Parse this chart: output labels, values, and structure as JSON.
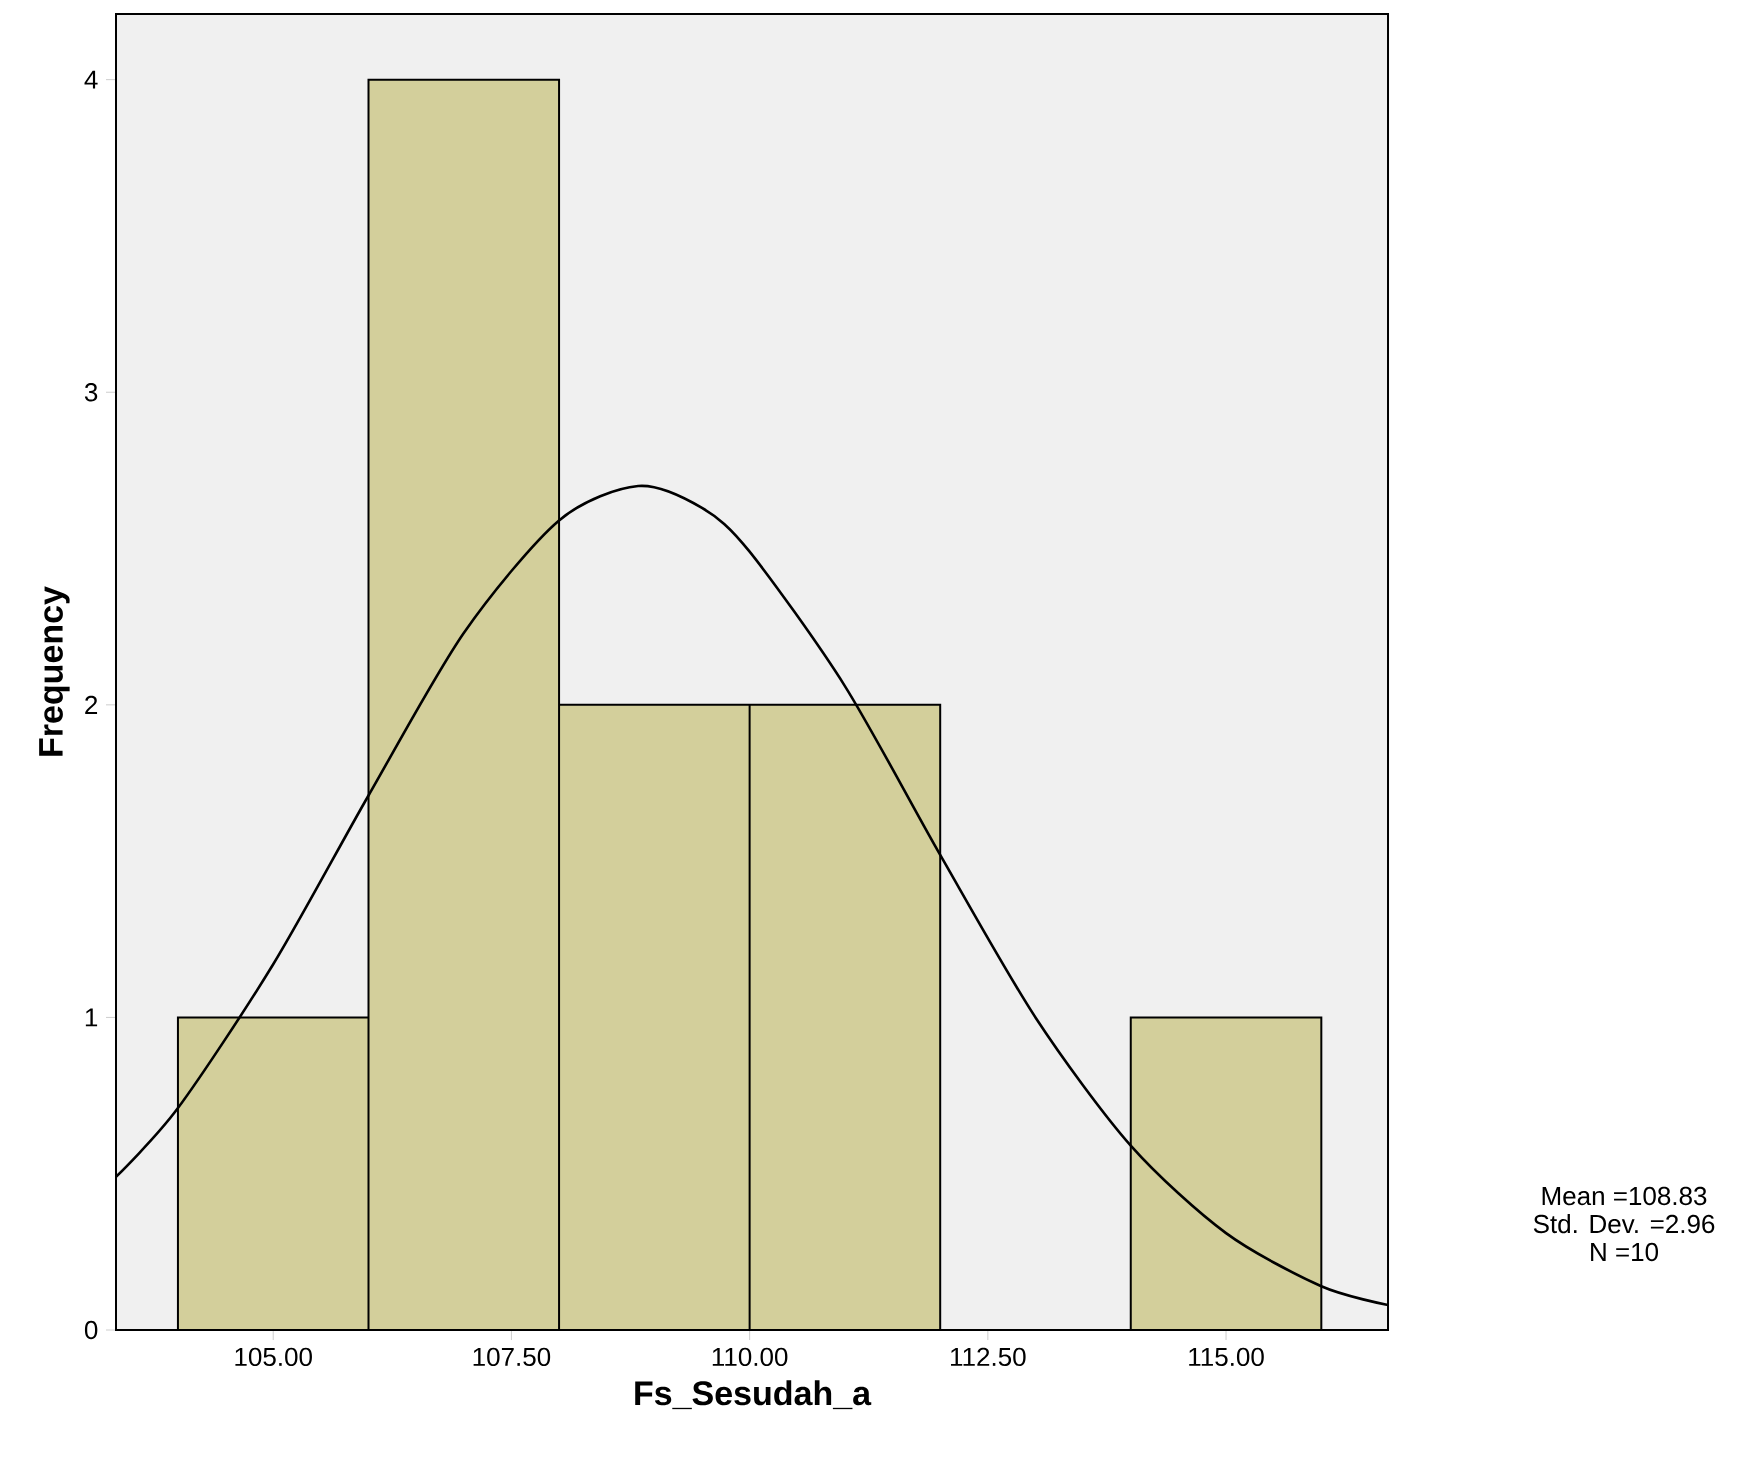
{
  "chart_data": {
    "type": "histogram",
    "xlabel": "Fs_Sesudah_a",
    "ylabel": "Frequency",
    "bins": [
      104,
      106,
      108,
      110,
      112,
      114,
      116
    ],
    "values": [
      1,
      4,
      2,
      2,
      0,
      1
    ],
    "color": "#d3cf9b",
    "xlim": [
      103.35,
      116.7
    ],
    "ylim": [
      0,
      4.21
    ],
    "xticks": [
      {
        "value": 105,
        "label": "105.00"
      },
      {
        "value": 107.5,
        "label": "107.50"
      },
      {
        "value": 110,
        "label": "110.00"
      },
      {
        "value": 112.5,
        "label": "112.50"
      },
      {
        "value": 115,
        "label": "115.00"
      }
    ],
    "yticks": [
      0,
      1,
      2,
      3,
      4
    ],
    "grid": false,
    "series": [
      {
        "type": "line",
        "color": "#000000",
        "x": [
          103.35,
          104,
          105,
          106,
          107,
          108,
          108.83,
          109.5,
          110,
          111,
          112,
          113,
          114,
          115,
          116,
          116.7
        ],
        "values": [
          0.49,
          0.71,
          1.17,
          1.71,
          2.23,
          2.59,
          2.7,
          2.63,
          2.49,
          2.06,
          1.52,
          1.0,
          0.59,
          0.31,
          0.14,
          0.08
        ]
      }
    ],
    "annotations": [
      "Mean =108.83",
      "Std. Dev. =2.96",
      "N =10"
    ]
  }
}
